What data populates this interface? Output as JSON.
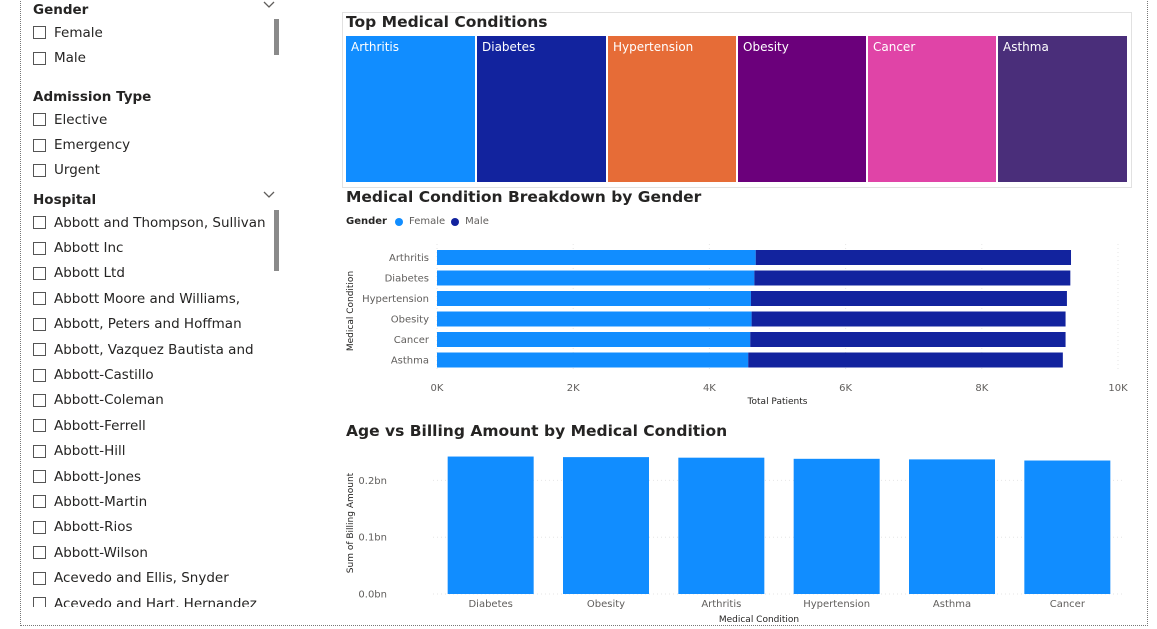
{
  "colors": {
    "female": "#118DFF",
    "male": "#12239E",
    "bar": "#118DFF",
    "tiles": [
      "#118DFF",
      "#12239E",
      "#E66C37",
      "#6B007B",
      "#E044A7",
      "#4A2E7A"
    ]
  },
  "slicers": {
    "gender": {
      "title": "Gender",
      "options": [
        "Female",
        "Male"
      ]
    },
    "admission_type": {
      "title": "Admission Type",
      "options": [
        "Elective",
        "Emergency",
        "Urgent"
      ]
    },
    "hospital": {
      "title": "Hospital",
      "options": [
        "Abbott and Thompson, Sullivan",
        "Abbott Inc",
        "Abbott Ltd",
        "Abbott Moore and Williams,",
        "Abbott, Peters and Hoffman",
        "Abbott, Vazquez Bautista and",
        "Abbott-Castillo",
        "Abbott-Coleman",
        "Abbott-Ferrell",
        "Abbott-Hill",
        "Abbott-Jones",
        "Abbott-Martin",
        "Abbott-Rios",
        "Abbott-Wilson",
        "Acevedo and Ellis, Snyder",
        "Acevedo and Hart, Hernandez"
      ]
    }
  },
  "treemap": {
    "title": "Top Medical Conditions",
    "tiles": [
      "Arthritis",
      "Diabetes",
      "Hypertension",
      "Obesity",
      "Cancer",
      "Asthma"
    ]
  },
  "gender_chart": {
    "title": "Medical Condition Breakdown by Gender",
    "legend_title": "Gender",
    "legend_female": "Female",
    "legend_male": "Male"
  },
  "billing_chart": {
    "title": "Age vs Billing Amount by Medical Condition"
  },
  "chart_data": [
    {
      "type": "treemap",
      "title": "Top Medical Conditions",
      "categories": [
        "Arthritis",
        "Diabetes",
        "Hypertension",
        "Obesity",
        "Cancer",
        "Asthma"
      ]
    },
    {
      "type": "bar",
      "orientation": "horizontal",
      "stacked": true,
      "title": "Medical Condition Breakdown by Gender",
      "categories": [
        "Arthritis",
        "Diabetes",
        "Hypertension",
        "Obesity",
        "Cancer",
        "Asthma"
      ],
      "series": [
        {
          "name": "Female",
          "values": [
            4680,
            4660,
            4610,
            4620,
            4600,
            4570
          ]
        },
        {
          "name": "Male",
          "values": [
            4630,
            4640,
            4640,
            4610,
            4630,
            4620
          ]
        }
      ],
      "xlabel": "Total Patients",
      "ylabel": "Medical Condition",
      "xlim": [
        0,
        10000
      ],
      "xticks": [
        "0K",
        "2K",
        "4K",
        "6K",
        "8K",
        "10K"
      ],
      "legend": "top-left"
    },
    {
      "type": "bar",
      "title": "Age vs Billing Amount by Medical Condition",
      "categories": [
        "Diabetes",
        "Obesity",
        "Arthritis",
        "Hypertension",
        "Asthma",
        "Cancer"
      ],
      "values": [
        0.242,
        0.241,
        0.24,
        0.238,
        0.237,
        0.235
      ],
      "xlabel": "Medical Condition",
      "ylabel": "Sum of Billing Amount",
      "ylim": [
        0,
        0.25
      ],
      "yticks": [
        "0.0bn",
        "0.1bn",
        "0.2bn"
      ]
    }
  ]
}
